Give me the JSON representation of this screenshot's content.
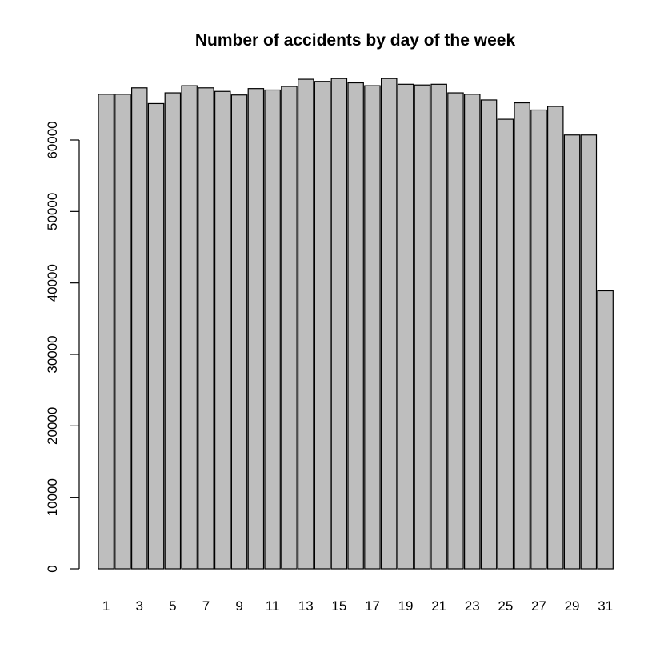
{
  "chart_data": {
    "type": "bar",
    "title": "Number of accidents by day of the week",
    "xlabel": "",
    "ylabel": "",
    "categories": [
      "1",
      "2",
      "3",
      "4",
      "5",
      "6",
      "7",
      "8",
      "9",
      "10",
      "11",
      "12",
      "13",
      "14",
      "15",
      "16",
      "17",
      "18",
      "19",
      "20",
      "21",
      "22",
      "23",
      "24",
      "25",
      "26",
      "27",
      "28",
      "29",
      "30",
      "31"
    ],
    "values": [
      66400,
      66400,
      67300,
      65100,
      66600,
      67600,
      67300,
      66800,
      66300,
      67200,
      67000,
      67500,
      68500,
      68200,
      68600,
      68000,
      67600,
      68600,
      67800,
      67700,
      67800,
      66600,
      66400,
      65600,
      62900,
      65200,
      64200,
      64700,
      60700,
      60700,
      38900
    ],
    "x_tick_labels_shown": [
      "1",
      "3",
      "5",
      "7",
      "9",
      "11",
      "13",
      "15",
      "17",
      "19",
      "21",
      "23",
      "25",
      "27",
      "29",
      "31"
    ],
    "y_ticks": [
      0,
      10000,
      20000,
      30000,
      40000,
      50000,
      60000
    ],
    "ylim": [
      0,
      70000
    ],
    "grid": false,
    "legend": "none",
    "bar_fill": "#bebebe",
    "bar_stroke": "#000000"
  }
}
